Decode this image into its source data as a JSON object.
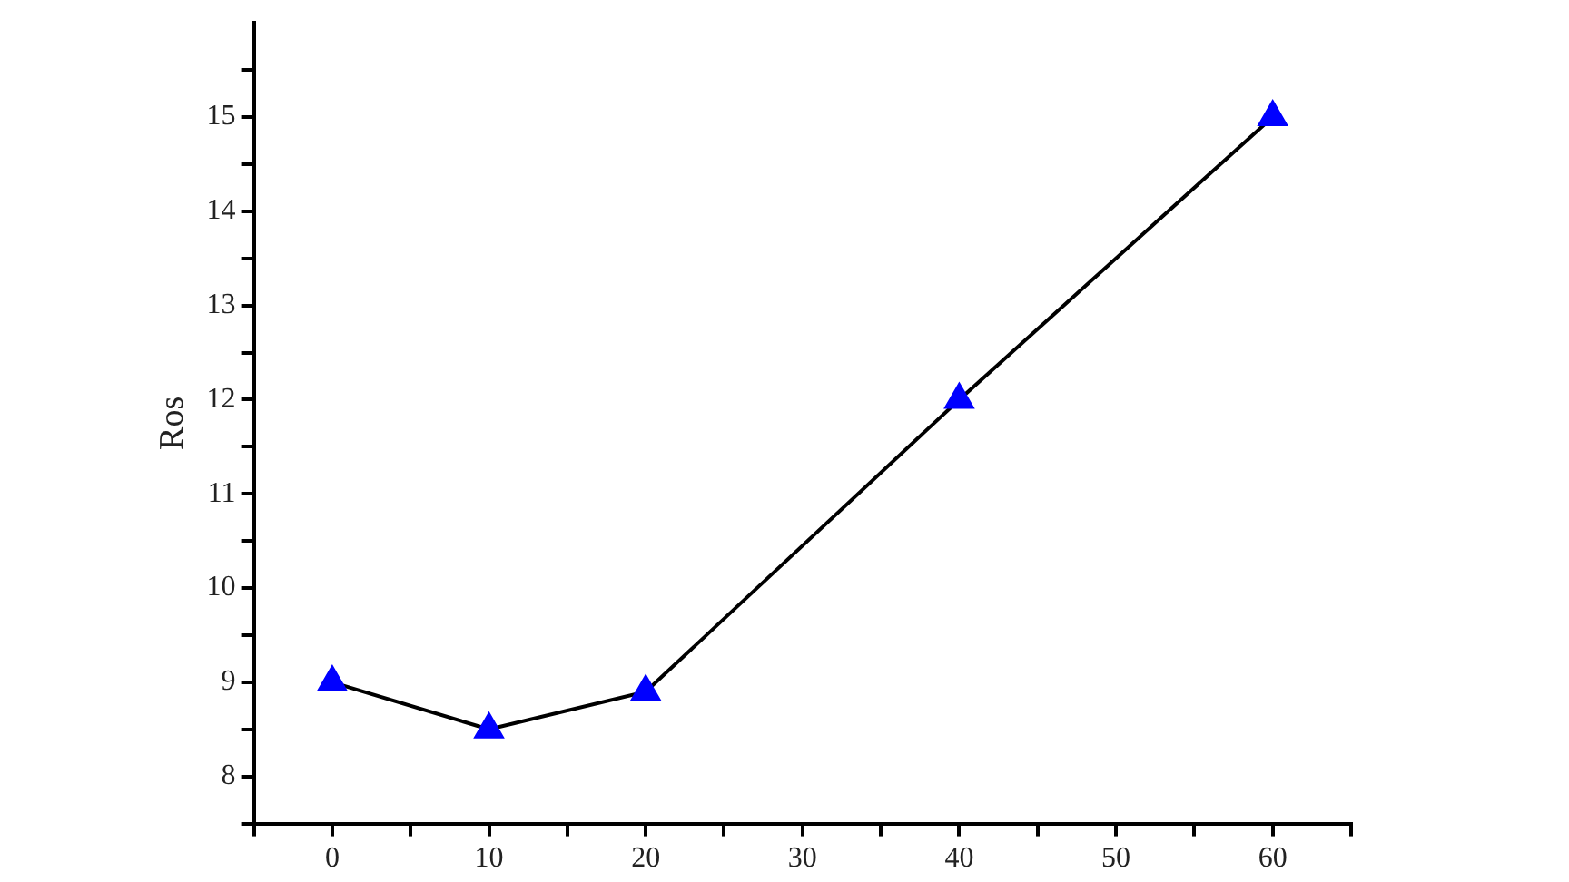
{
  "chart_data": {
    "type": "line",
    "ylabel": "Ros",
    "x": [
      0,
      10,
      20,
      40,
      60
    ],
    "series": [
      {
        "color": "#0000ff",
        "values": [
          9,
          8.5,
          8.9,
          12,
          15
        ]
      }
    ],
    "xlim": [
      -5,
      65
    ],
    "xticks": [
      {
        "value": -5,
        "label": null
      },
      0,
      {
        "value": 5,
        "label": null
      },
      10,
      {
        "value": 15,
        "label": null
      },
      20,
      {
        "value": 25,
        "label": null
      },
      30,
      {
        "value": 35,
        "label": null
      },
      40,
      {
        "value": 45,
        "label": null
      },
      50,
      {
        "value": 55,
        "label": null
      },
      60,
      {
        "value": 65,
        "label": null
      }
    ],
    "ylim": [
      7.5,
      16
    ],
    "yticks": [
      {
        "value": 7.5,
        "label": null
      },
      8,
      {
        "value": 8.5,
        "label": null
      },
      9,
      {
        "value": 9.5,
        "label": null
      },
      10,
      {
        "value": 10.5,
        "label": null
      },
      11,
      {
        "value": 11.5,
        "label": null
      },
      12,
      {
        "value": 12.5,
        "label": null
      },
      13,
      {
        "value": 13.5,
        "label": null
      },
      14,
      {
        "value": 14.5,
        "label": null
      },
      15,
      {
        "value": 15.5,
        "label": null
      }
    ],
    "grid": false,
    "legend": false,
    "marker": "triangle",
    "line_style": "solid"
  }
}
